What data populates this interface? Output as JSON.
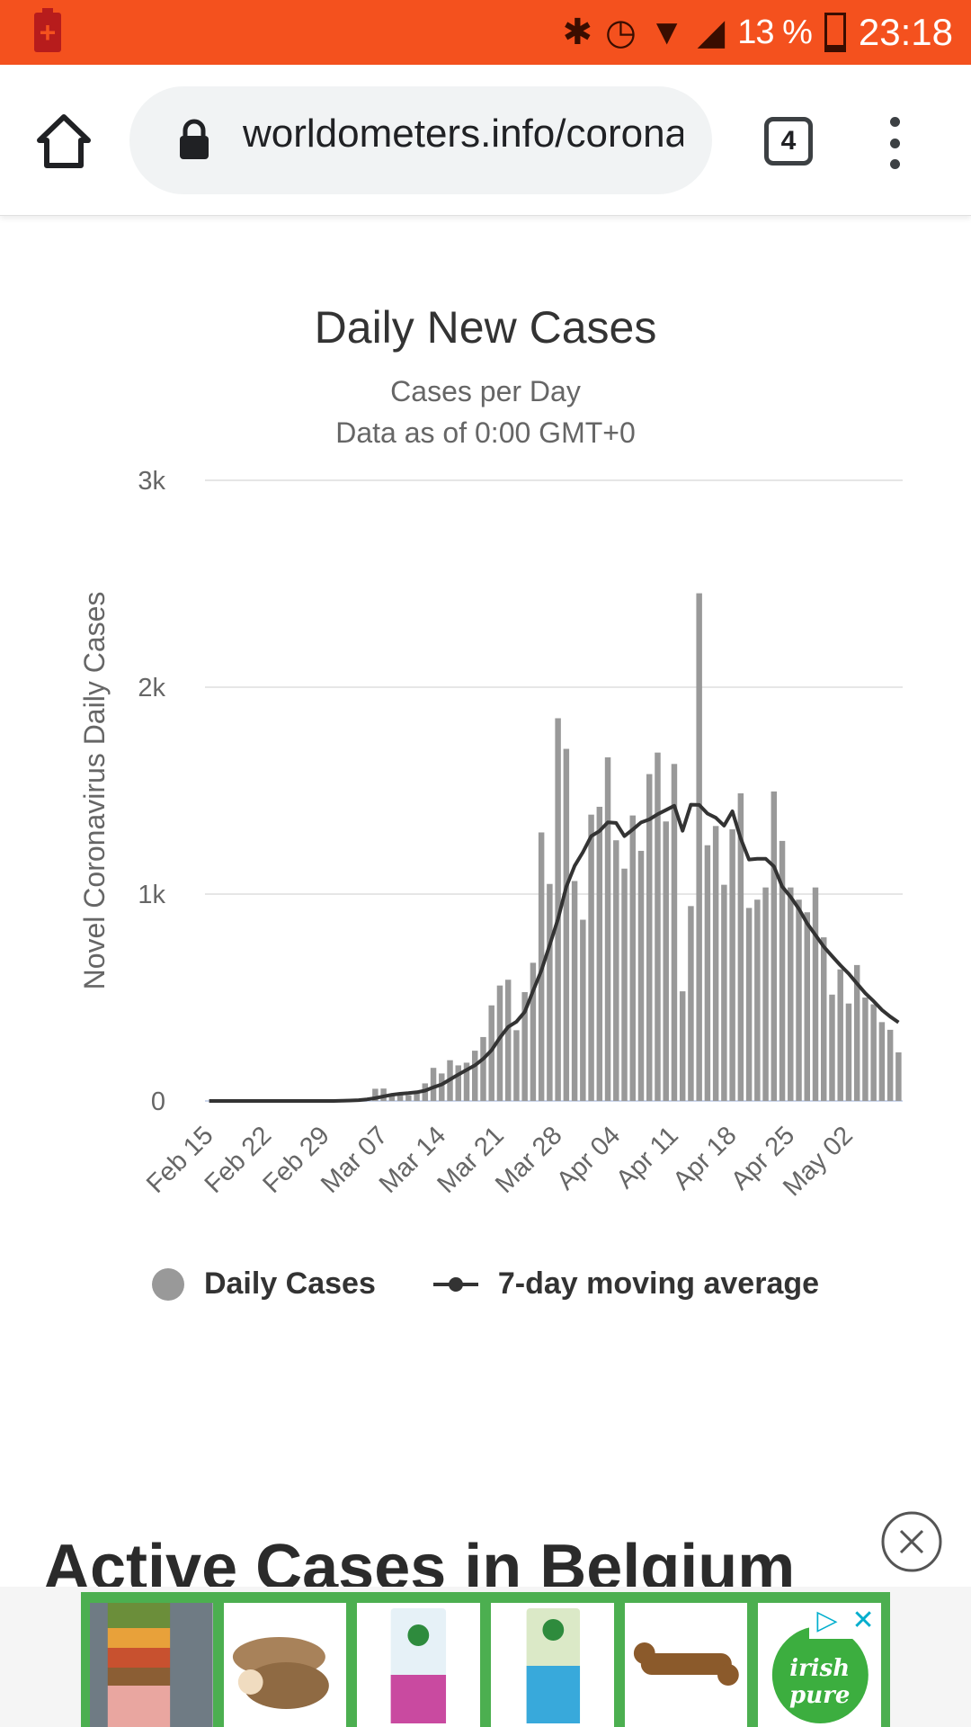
{
  "status_bar": {
    "battery_percent": "13 %",
    "time": "23:18",
    "icons": [
      "battery-saver-icon",
      "bluetooth-icon",
      "alarm-icon",
      "wifi-icon",
      "signal-icon",
      "battery-icon"
    ],
    "battery_level": 0.13,
    "background_color": "#f4511e"
  },
  "browser": {
    "url": "worldometers.info/coronavirus/country/belgium/",
    "tab_count": "4",
    "icons": [
      "home-icon",
      "lock-icon",
      "tabs-icon",
      "more-vert-icon"
    ]
  },
  "chart_data": {
    "type": "bar",
    "title": "Daily New Cases",
    "subtitle_lines": [
      "Cases per Day",
      "Data as of 0:00 GMT+0"
    ],
    "ylabel": "Novel Coronavirus Daily Cases",
    "ylim": [
      0,
      3000
    ],
    "y_ticks": [
      "0",
      "1k",
      "2k",
      "3k"
    ],
    "y_tick_values": [
      0,
      1000,
      2000,
      3000
    ],
    "x_tick_labels": [
      "Feb 15",
      "Feb 22",
      "Feb 29",
      "Mar 07",
      "Mar 14",
      "Mar 21",
      "Mar 28",
      "Apr 04",
      "Apr 11",
      "Apr 18",
      "Apr 25",
      "May 02"
    ],
    "x_tick_every": 7,
    "categories": [
      "Feb 15",
      "Feb 16",
      "Feb 17",
      "Feb 18",
      "Feb 19",
      "Feb 20",
      "Feb 21",
      "Feb 22",
      "Feb 23",
      "Feb 24",
      "Feb 25",
      "Feb 26",
      "Feb 27",
      "Feb 28",
      "Feb 29",
      "Mar 01",
      "Mar 02",
      "Mar 03",
      "Mar 04",
      "Mar 05",
      "Mar 06",
      "Mar 07",
      "Mar 08",
      "Mar 09",
      "Mar 10",
      "Mar 11",
      "Mar 12",
      "Mar 13",
      "Mar 14",
      "Mar 15",
      "Mar 16",
      "Mar 17",
      "Mar 18",
      "Mar 19",
      "Mar 20",
      "Mar 21",
      "Mar 22",
      "Mar 23",
      "Mar 24",
      "Mar 25",
      "Mar 26",
      "Mar 27",
      "Mar 28",
      "Mar 29",
      "Mar 30",
      "Mar 31",
      "Apr 01",
      "Apr 02",
      "Apr 03",
      "Apr 04",
      "Apr 05",
      "Apr 06",
      "Apr 07",
      "Apr 08",
      "Apr 09",
      "Apr 10",
      "Apr 11",
      "Apr 12",
      "Apr 13",
      "Apr 14",
      "Apr 15",
      "Apr 16",
      "Apr 17",
      "Apr 18",
      "Apr 19",
      "Apr 20",
      "Apr 21",
      "Apr 22",
      "Apr 23",
      "Apr 24",
      "Apr 25",
      "Apr 26",
      "Apr 27",
      "Apr 28",
      "Apr 29",
      "Apr 30",
      "May 01",
      "May 02",
      "May 03",
      "May 04",
      "May 05",
      "May 06",
      "May 07",
      "May 08"
    ],
    "series": [
      {
        "name": "Daily Cases",
        "kind": "bar",
        "color": "#999999",
        "values": [
          0,
          0,
          0,
          0,
          0,
          0,
          0,
          0,
          0,
          0,
          0,
          0,
          0,
          0,
          0,
          1,
          1,
          0,
          6,
          5,
          59,
          60,
          31,
          39,
          28,
          47,
          85,
          160,
          133,
          197,
          172,
          185,
          243,
          309,
          462,
          558,
          586,
          342,
          526,
          668,
          1298,
          1049,
          1850,
          1702,
          1063,
          876,
          1384,
          1422,
          1661,
          1260,
          1123,
          1380,
          1209,
          1580,
          1684,
          1351,
          1629,
          530,
          942,
          2454,
          1236,
          1329,
          1045,
          1313,
          1487,
          933,
          973,
          1032,
          1496,
          1257,
          1032,
          973,
          912,
          1032,
          791,
          514,
          636,
          471,
          657,
          500,
          467,
          381,
          344,
          235
        ]
      },
      {
        "name": "7-day moving average",
        "kind": "line",
        "color": "#333333",
        "values": [
          0,
          0,
          0,
          0,
          0,
          0,
          0,
          0,
          0,
          0,
          0,
          0,
          0,
          0,
          0,
          0,
          1,
          2,
          4,
          8,
          14,
          22,
          30,
          35,
          38,
          42,
          50,
          66,
          80,
          104,
          128,
          150,
          172,
          204,
          245,
          306,
          358,
          383,
          431,
          532,
          630,
          753,
          879,
          1036,
          1136,
          1202,
          1280,
          1305,
          1347,
          1344,
          1280,
          1312,
          1346,
          1361,
          1386,
          1406,
          1427,
          1306,
          1432,
          1431,
          1389,
          1369,
          1331,
          1400,
          1268,
          1167,
          1171,
          1171,
          1134,
          1036,
          987,
          929,
          858,
          802,
          746,
          700,
          656,
          615,
          568,
          521,
          482,
          440,
          408,
          380
        ]
      }
    ],
    "grid": true,
    "legend_position": "bottom-center",
    "legend": [
      "Daily Cases",
      "7-day moving average"
    ]
  },
  "section": {
    "heading": "Active Cases in Belgium"
  },
  "ad": {
    "tile_count": 6,
    "brand_text": "irish pure",
    "icons": [
      "adchoices-icon",
      "ad-close-icon",
      "close-circle-icon"
    ]
  }
}
